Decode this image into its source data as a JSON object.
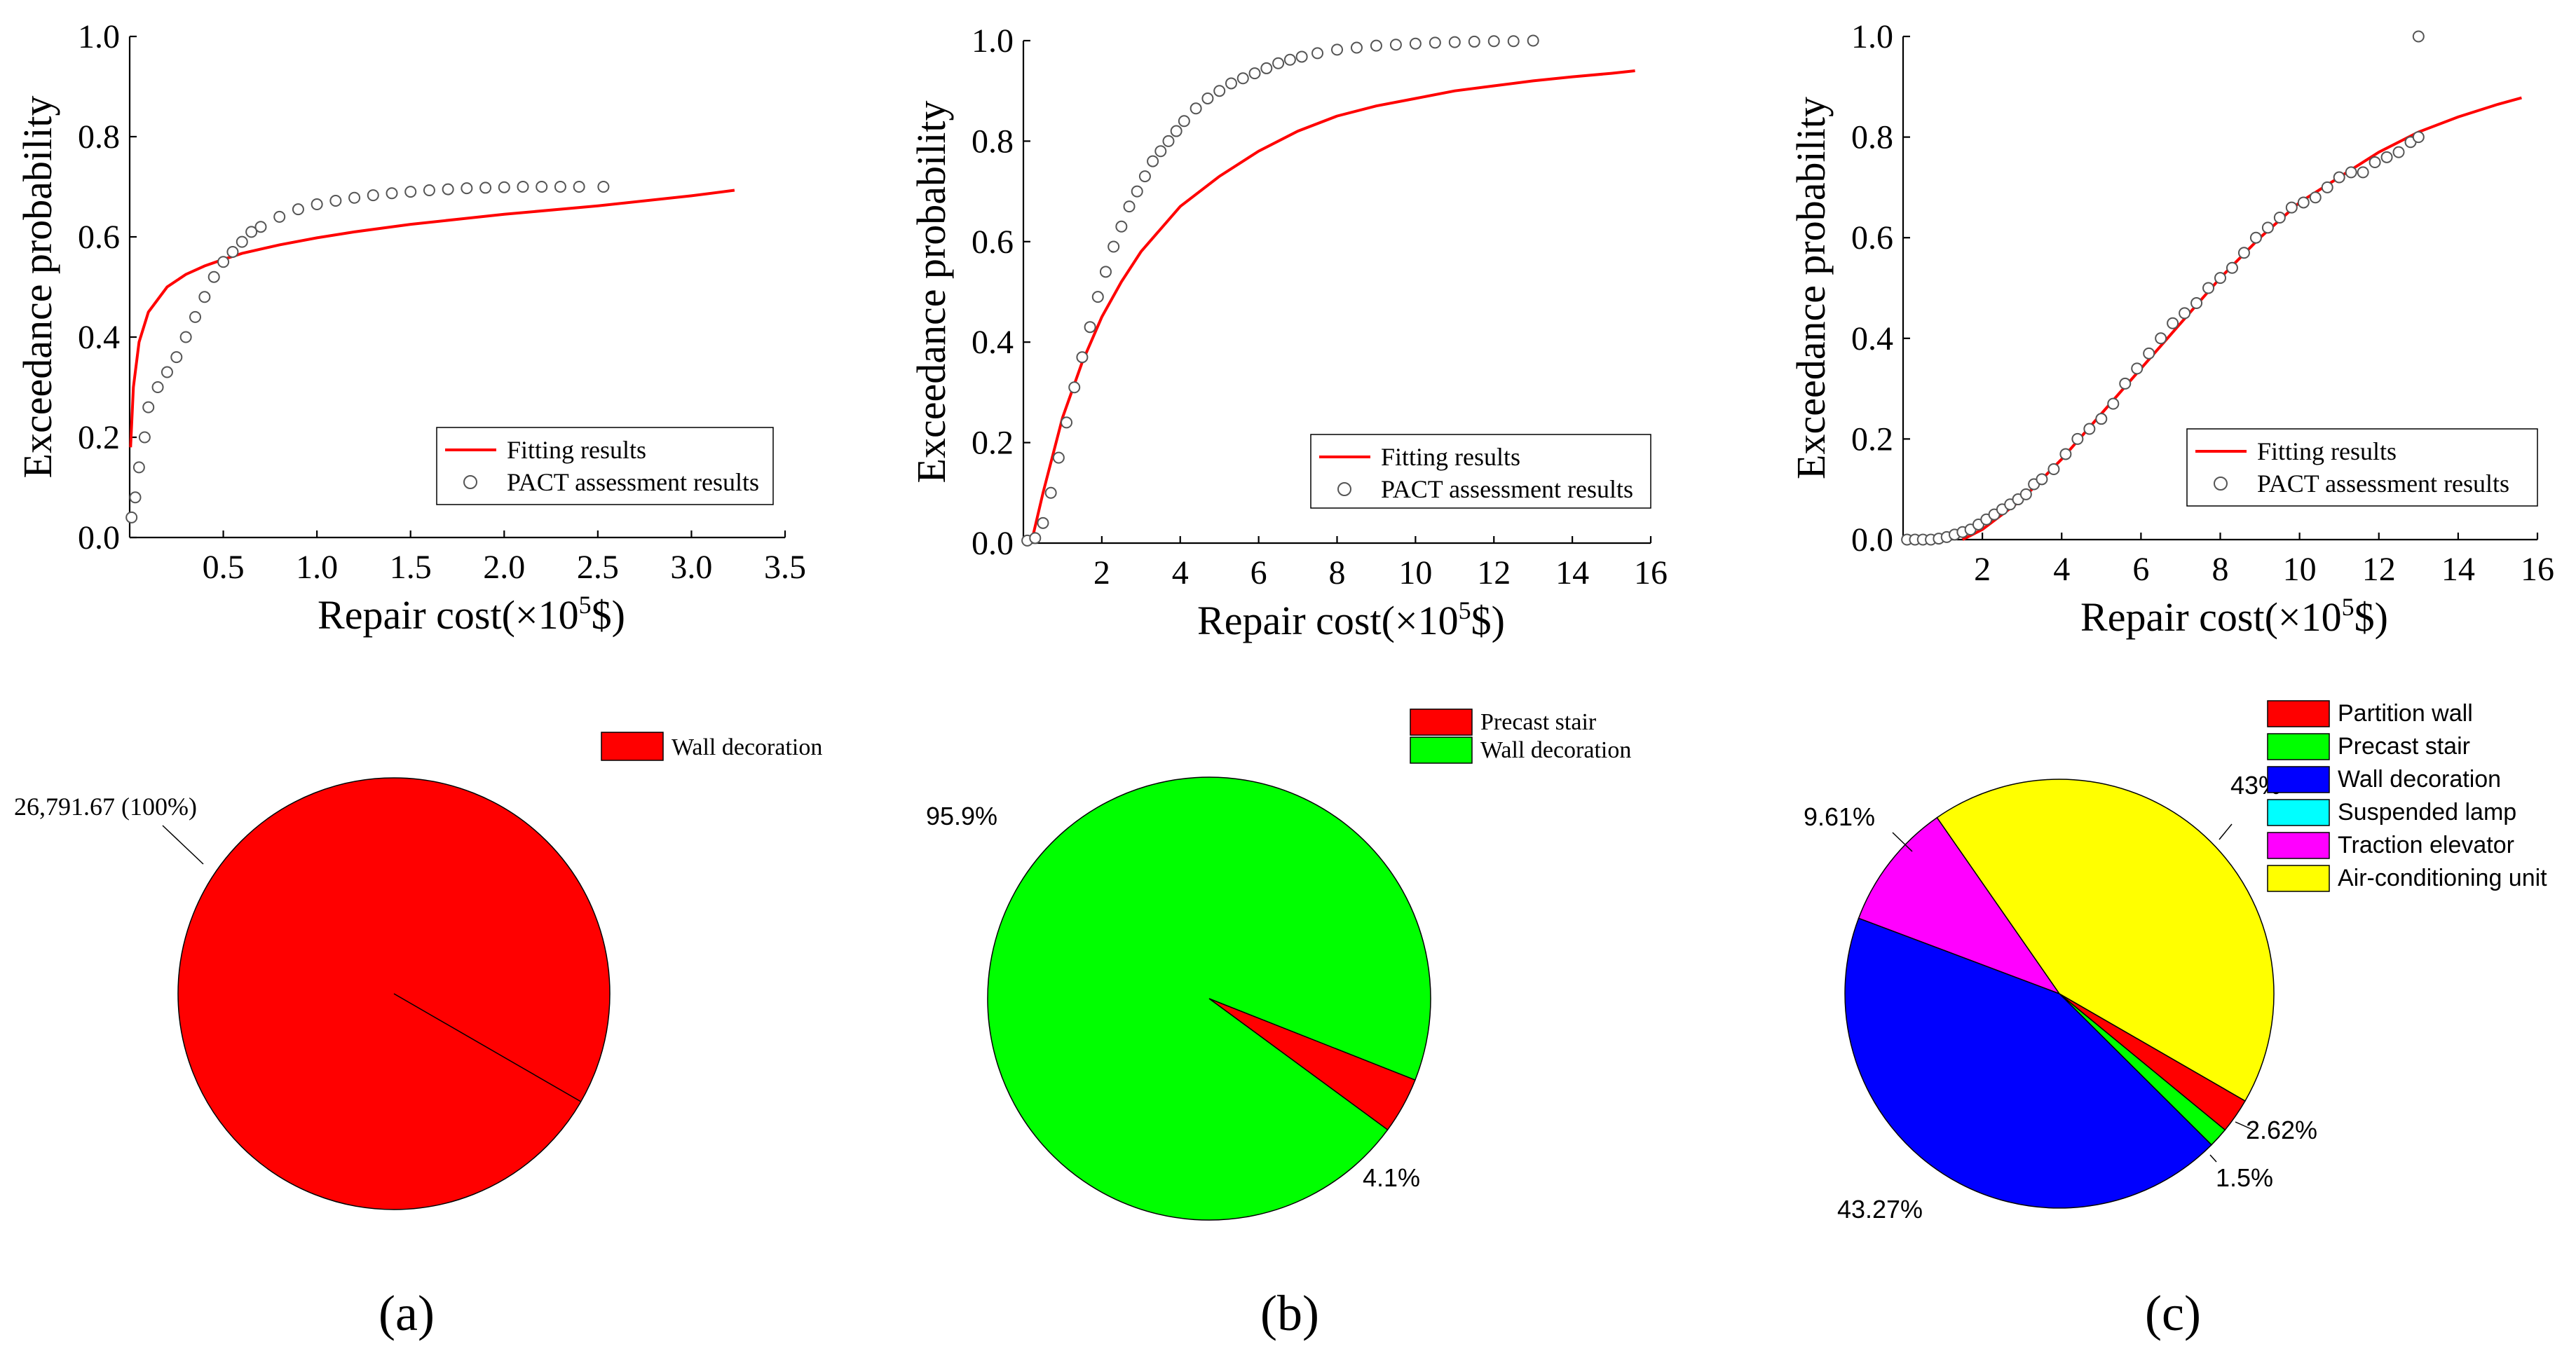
{
  "colors": {
    "fit_line": "#ff0000",
    "marker_stroke": "#555555",
    "red": "#ff0000",
    "green": "#00ff00",
    "blue": "#0000ff",
    "cyan": "#00ffff",
    "magenta": "#ff00ff",
    "yellow": "#ffff00"
  },
  "panels": [
    {
      "letter": "a",
      "label": "(a)"
    },
    {
      "letter": "b",
      "label": "(b)"
    },
    {
      "letter": "c",
      "label": "(c)"
    }
  ],
  "chart_data": [
    {
      "id": "a-curve",
      "type": "line",
      "xlabel_main": "Repair cost(×10",
      "xlabel_sup": "5",
      "xlabel_tail": "$)",
      "ylabel": "Exceedance probability",
      "xlim": [
        0,
        3.5
      ],
      "ylim": [
        0,
        1.0
      ],
      "xticks": [
        0.5,
        1.0,
        1.5,
        2.0,
        2.5,
        3.0,
        3.5
      ],
      "xtick_labels": [
        "0.5",
        "1.0",
        "1.5",
        "2.0",
        "2.5",
        "3.0",
        "3.5"
      ],
      "yticks": [
        0,
        0.2,
        0.4,
        0.6,
        0.8,
        1.0
      ],
      "ytick_labels": [
        "0.0",
        "0.2",
        "0.4",
        "0.6",
        "0.8",
        "1.0"
      ],
      "legend": [
        "Fitting results",
        "PACT assessment results"
      ],
      "series": [
        {
          "name": "Fitting results",
          "style": "line",
          "x": [
            0.005,
            0.02,
            0.05,
            0.1,
            0.2,
            0.3,
            0.4,
            0.5,
            0.6,
            0.8,
            1.0,
            1.2,
            1.5,
            1.8,
            2.0,
            2.5,
            3.0,
            3.23
          ],
          "y": [
            0.18,
            0.3,
            0.39,
            0.45,
            0.5,
            0.525,
            0.542,
            0.555,
            0.567,
            0.584,
            0.598,
            0.61,
            0.625,
            0.637,
            0.645,
            0.662,
            0.682,
            0.693
          ]
        },
        {
          "name": "PACT assessment results",
          "style": "markers",
          "x": [
            0.01,
            0.03,
            0.05,
            0.08,
            0.1,
            0.15,
            0.2,
            0.25,
            0.3,
            0.35,
            0.4,
            0.45,
            0.5,
            0.55,
            0.6,
            0.65,
            0.7,
            0.8,
            0.9,
            1.0,
            1.1,
            1.2,
            1.3,
            1.4,
            1.5,
            1.6,
            1.7,
            1.8,
            1.9,
            2.0,
            2.1,
            2.2,
            2.3,
            2.4,
            2.53
          ],
          "y": [
            0.04,
            0.08,
            0.14,
            0.2,
            0.26,
            0.3,
            0.33,
            0.36,
            0.4,
            0.44,
            0.48,
            0.52,
            0.55,
            0.57,
            0.59,
            0.61,
            0.62,
            0.64,
            0.655,
            0.665,
            0.672,
            0.678,
            0.683,
            0.687,
            0.69,
            0.693,
            0.695,
            0.697,
            0.698,
            0.699,
            0.7,
            0.7,
            0.7,
            0.7,
            0.7
          ]
        }
      ]
    },
    {
      "id": "b-curve",
      "type": "line",
      "xlabel_main": "Repair cost(×10",
      "xlabel_sup": "5",
      "xlabel_tail": "$)",
      "ylabel": "Exceedance probability",
      "xlim": [
        0,
        16
      ],
      "ylim": [
        0,
        1.0
      ],
      "xticks": [
        2,
        4,
        6,
        8,
        10,
        12,
        14,
        16
      ],
      "xtick_labels": [
        "2",
        "4",
        "6",
        "8",
        "10",
        "12",
        "14",
        "16"
      ],
      "yticks": [
        0,
        0.2,
        0.4,
        0.6,
        0.8,
        1.0
      ],
      "ytick_labels": [
        "0.0",
        "0.2",
        "0.4",
        "0.6",
        "0.8",
        "1.0"
      ],
      "legend": [
        "Fitting results",
        "PACT assessment results"
      ],
      "series": [
        {
          "name": "Fitting results",
          "style": "line",
          "x": [
            0.2,
            0.5,
            1.0,
            1.5,
            2.0,
            2.5,
            3.0,
            4.0,
            5.0,
            6.0,
            7.0,
            8.0,
            9.0,
            10.0,
            11.0,
            12.0,
            13.0,
            14.0,
            15.0,
            15.6
          ],
          "y": [
            0.0,
            0.1,
            0.25,
            0.36,
            0.45,
            0.52,
            0.58,
            0.67,
            0.73,
            0.78,
            0.82,
            0.85,
            0.87,
            0.885,
            0.9,
            0.91,
            0.92,
            0.928,
            0.935,
            0.94
          ]
        },
        {
          "name": "PACT assessment results",
          "style": "markers",
          "x": [
            0.1,
            0.3,
            0.5,
            0.7,
            0.9,
            1.1,
            1.3,
            1.5,
            1.7,
            1.9,
            2.1,
            2.3,
            2.5,
            2.7,
            2.9,
            3.1,
            3.3,
            3.5,
            3.7,
            3.9,
            4.1,
            4.4,
            4.7,
            5.0,
            5.3,
            5.6,
            5.9,
            6.2,
            6.5,
            6.8,
            7.1,
            7.5,
            8.0,
            8.5,
            9.0,
            9.5,
            10.0,
            10.5,
            11.0,
            11.5,
            12.0,
            12.5,
            13.0
          ],
          "y": [
            0.005,
            0.01,
            0.04,
            0.1,
            0.17,
            0.24,
            0.31,
            0.37,
            0.43,
            0.49,
            0.54,
            0.59,
            0.63,
            0.67,
            0.7,
            0.73,
            0.76,
            0.78,
            0.8,
            0.82,
            0.84,
            0.865,
            0.885,
            0.9,
            0.915,
            0.925,
            0.935,
            0.945,
            0.955,
            0.962,
            0.968,
            0.975,
            0.982,
            0.986,
            0.99,
            0.992,
            0.994,
            0.996,
            0.997,
            0.998,
            0.999,
            0.999,
            1.0
          ]
        }
      ]
    },
    {
      "id": "c-curve",
      "type": "line",
      "xlabel_main": "Repair cost(×10",
      "xlabel_sup": "5",
      "xlabel_tail": "$)",
      "ylabel": "Exceedance probability",
      "xlim": [
        0,
        16
      ],
      "ylim": [
        0,
        1.0
      ],
      "xticks": [
        2,
        4,
        6,
        8,
        10,
        12,
        14,
        16
      ],
      "xtick_labels": [
        "2",
        "4",
        "6",
        "8",
        "10",
        "12",
        "14",
        "16"
      ],
      "yticks": [
        0,
        0.2,
        0.4,
        0.6,
        0.8,
        1.0
      ],
      "ytick_labels": [
        "0.0",
        "0.2",
        "0.4",
        "0.6",
        "0.8",
        "1.0"
      ],
      "legend": [
        "Fitting results",
        "PACT assessment results"
      ],
      "series": [
        {
          "name": "Fitting results",
          "style": "line",
          "x": [
            1.5,
            2.0,
            2.5,
            3.0,
            3.5,
            4.0,
            5.0,
            6.0,
            7.0,
            8.0,
            9.0,
            10.0,
            11.0,
            12.0,
            13.0,
            14.0,
            15.0,
            15.6
          ],
          "y": [
            0.0,
            0.02,
            0.05,
            0.08,
            0.12,
            0.16,
            0.25,
            0.34,
            0.43,
            0.52,
            0.6,
            0.67,
            0.72,
            0.77,
            0.81,
            0.84,
            0.865,
            0.878
          ]
        },
        {
          "name": "PACT assessment results",
          "style": "markers",
          "x": [
            0.1,
            0.3,
            0.5,
            0.7,
            0.9,
            1.1,
            1.3,
            1.5,
            1.7,
            1.9,
            2.1,
            2.3,
            2.5,
            2.7,
            2.9,
            3.1,
            3.3,
            3.5,
            3.8,
            4.1,
            4.4,
            4.7,
            5.0,
            5.3,
            5.6,
            5.9,
            6.2,
            6.5,
            6.8,
            7.1,
            7.4,
            7.7,
            8.0,
            8.3,
            8.6,
            8.9,
            9.2,
            9.5,
            9.8,
            10.1,
            10.4,
            10.7,
            11.0,
            11.3,
            11.6,
            11.9,
            12.2,
            12.5,
            12.8,
            13.0,
            13.0
          ],
          "y": [
            0.0,
            0.0,
            0.0,
            0.0,
            0.002,
            0.005,
            0.01,
            0.015,
            0.02,
            0.03,
            0.04,
            0.05,
            0.06,
            0.07,
            0.08,
            0.09,
            0.11,
            0.12,
            0.14,
            0.17,
            0.2,
            0.22,
            0.24,
            0.27,
            0.31,
            0.34,
            0.37,
            0.4,
            0.43,
            0.45,
            0.47,
            0.5,
            0.52,
            0.54,
            0.57,
            0.6,
            0.62,
            0.64,
            0.66,
            0.67,
            0.68,
            0.7,
            0.72,
            0.73,
            0.73,
            0.75,
            0.76,
            0.77,
            0.79,
            0.8,
            1.0
          ]
        }
      ]
    },
    {
      "id": "a-pie",
      "type": "pie",
      "labels": [
        "Wall decoration"
      ],
      "values": [
        100
      ],
      "colors": [
        "#ff0000"
      ],
      "annotations": [
        "26,791.67 (100%)"
      ],
      "legend": [
        "Wall decoration"
      ]
    },
    {
      "id": "b-pie",
      "type": "pie",
      "labels": [
        "Precast stair",
        "Wall decoration"
      ],
      "values": [
        4.1,
        95.9
      ],
      "colors": [
        "#ff0000",
        "#00ff00"
      ],
      "annotations": [
        "4.1%",
        "95.9%"
      ],
      "legend": [
        "Precast stair",
        "Wall decoration"
      ]
    },
    {
      "id": "c-pie",
      "type": "pie",
      "labels": [
        "Partition wall",
        "Precast stair",
        "Wall decoration",
        "Suspended lamp",
        "Traction elevator",
        "Air-conditioning unit"
      ],
      "values": [
        2.62,
        1.5,
        43.27,
        0,
        9.61,
        43
      ],
      "colors": [
        "#ff0000",
        "#00ff00",
        "#0000ff",
        "#00ffff",
        "#ff00ff",
        "#ffff00"
      ],
      "annotations": [
        "2.62%",
        "1.5%",
        "43.27%",
        "",
        "9.61%",
        "43%"
      ],
      "legend": [
        "Partition wall",
        "Precast stair",
        "Wall decoration",
        "Suspended lamp",
        "Traction elevator",
        "Air-conditioning unit"
      ]
    }
  ]
}
